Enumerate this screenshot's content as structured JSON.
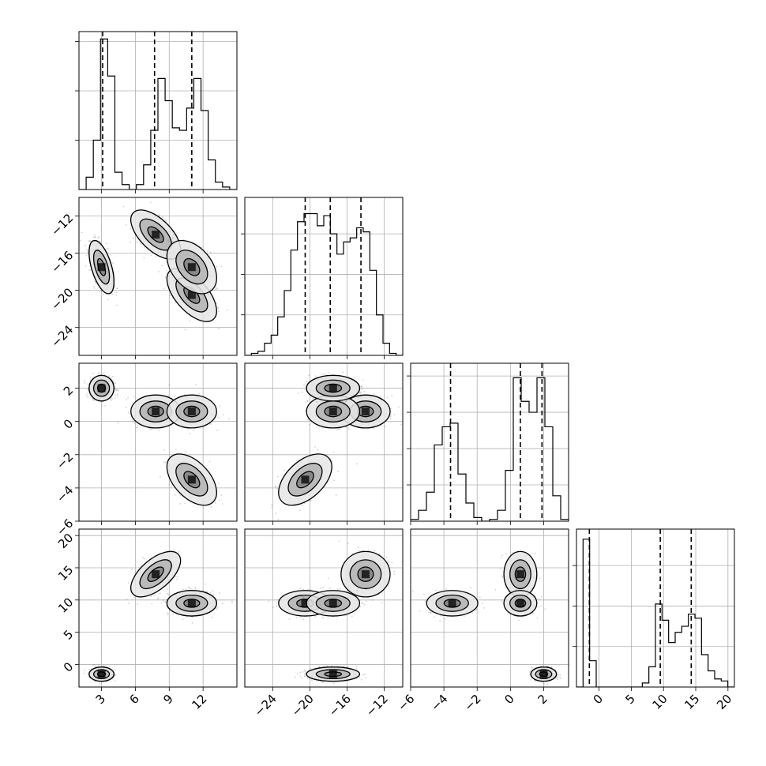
{
  "chart_data": {
    "type": "corner",
    "title": "",
    "grid": true,
    "parameters": [
      {
        "range": [
          1,
          15
        ],
        "ticks": [
          3,
          6,
          9,
          12
        ],
        "tick_labels": [
          "3",
          "6",
          "9",
          "12"
        ],
        "quantiles": [
          3.1,
          7.7,
          11.0
        ],
        "hist_ticks": [
          1,
          2,
          3
        ],
        "hist_max": 3.2,
        "hist_counts": [
          0,
          0.25,
          1.0,
          3.05,
          2.3,
          0.35,
          0.1,
          0.0,
          0.1,
          0.5,
          1.2,
          2.25,
          1.8,
          1.25,
          1.2,
          1.65,
          2.25,
          1.6,
          0.6,
          0.15,
          0.05,
          0
        ]
      },
      {
        "range": [
          -27,
          -10
        ],
        "ticks": [
          -24,
          -20,
          -16,
          -12
        ],
        "tick_labels": [
          "−24",
          "−20",
          "−16",
          "−12"
        ],
        "quantiles": [
          -20.5,
          -17.8,
          -14.5
        ],
        "hist_ticks": [
          1,
          2,
          3
        ],
        "hist_max": 3.9,
        "hist_counts": [
          0,
          0.05,
          0.1,
          0.3,
          0.5,
          0.95,
          1.6,
          2.6,
          3.3,
          3.5,
          3.5,
          3.2,
          3.45,
          3.0,
          2.5,
          2.8,
          2.9,
          3.15,
          3.05,
          2.1,
          1.0,
          0.3,
          0.05,
          0
        ]
      },
      {
        "range": [
          -6,
          3.5
        ],
        "ticks": [
          -6,
          -4,
          -2,
          0,
          2
        ],
        "tick_labels": [
          "−6",
          "−4",
          "−2",
          "0",
          "2"
        ],
        "quantiles": [
          -3.6,
          0.6,
          1.9
        ],
        "hist_ticks": [
          1,
          2,
          3,
          4
        ],
        "hist_max": 4.35,
        "hist_counts": [
          0.05,
          0.3,
          0.8,
          2.1,
          2.6,
          2.7,
          1.3,
          0.5,
          0.1,
          0,
          0.05,
          0.3,
          1.4,
          3.95,
          3.3,
          3.0,
          3.95,
          2.6,
          0.7,
          0.05
        ]
      },
      {
        "range": [
          -3.5,
          21
        ],
        "ticks": [
          0,
          5,
          10,
          15,
          20
        ],
        "tick_labels": [
          "0",
          "5",
          "10",
          "15",
          "20"
        ],
        "quantiles": [
          -1.5,
          9.5,
          14.3
        ],
        "hist_ticks": [
          1,
          2,
          3
        ],
        "hist_max": 3.9,
        "hist_counts": [
          0,
          3.65,
          0.65,
          0,
          0,
          0,
          0,
          0,
          0,
          0,
          0.1,
          0.5,
          2.05,
          1.65,
          1.1,
          1.35,
          1.5,
          1.8,
          1.7,
          0.8,
          0.4,
          0.2,
          0.15,
          0
        ]
      }
    ],
    "components": [
      {
        "mean": [
          3.0,
          -17.5,
          2.0,
          -1.5
        ],
        "sd": [
          0.5,
          1.3,
          0.35,
          0.5
        ],
        "corr": [
          [
            1,
            -0.55,
            0,
            0
          ],
          [
            -0.55,
            1,
            0,
            0
          ],
          [
            0,
            0,
            1,
            0
          ],
          [
            0,
            0,
            0,
            1
          ]
        ]
      },
      {
        "mean": [
          7.8,
          -14.0,
          0.6,
          14.0
        ],
        "sd": [
          1.0,
          1.2,
          0.45,
          1.6
        ],
        "corr": [
          [
            1,
            -0.6,
            0,
            0.6
          ],
          [
            -0.6,
            1,
            0,
            0
          ],
          [
            0,
            0,
            1,
            0
          ],
          [
            0.6,
            0,
            0,
            1
          ]
        ]
      },
      {
        "mean": [
          11.0,
          -20.5,
          -3.5,
          9.5
        ],
        "sd": [
          1.0,
          1.3,
          0.7,
          0.9
        ],
        "corr": [
          [
            1,
            -0.6,
            -0.5,
            0
          ],
          [
            -0.6,
            1,
            0.5,
            0
          ],
          [
            -0.5,
            0.5,
            1,
            0
          ],
          [
            0,
            0,
            0,
            1
          ]
        ]
      },
      {
        "mean": [
          11.0,
          -17.5,
          0.6,
          9.5
        ],
        "sd": [
          1.0,
          1.3,
          0.45,
          0.9
        ],
        "corr": [
          [
            1,
            -0.4,
            0,
            0
          ],
          [
            -0.4,
            1,
            0,
            0
          ],
          [
            0,
            0,
            1,
            0
          ],
          [
            0,
            0,
            0,
            1
          ]
        ]
      },
      {
        "mean": [
          3.0,
          -17.5,
          2.0,
          -1.5
        ],
        "sd": [
          0.5,
          1.3,
          0.35,
          0.5
        ],
        "corr": [
          [
            1,
            -0.55,
            0,
            0
          ],
          [
            -0.55,
            1,
            0,
            0
          ],
          [
            0,
            0,
            1,
            0
          ],
          [
            0,
            0,
            0,
            1
          ]
        ]
      }
    ],
    "contour_levels": [
      0.39,
      0.86,
      1.0
    ],
    "contour_color": "#000000",
    "scatter_color": "#7f7f7f",
    "grid_color": "#b0b0b0"
  }
}
